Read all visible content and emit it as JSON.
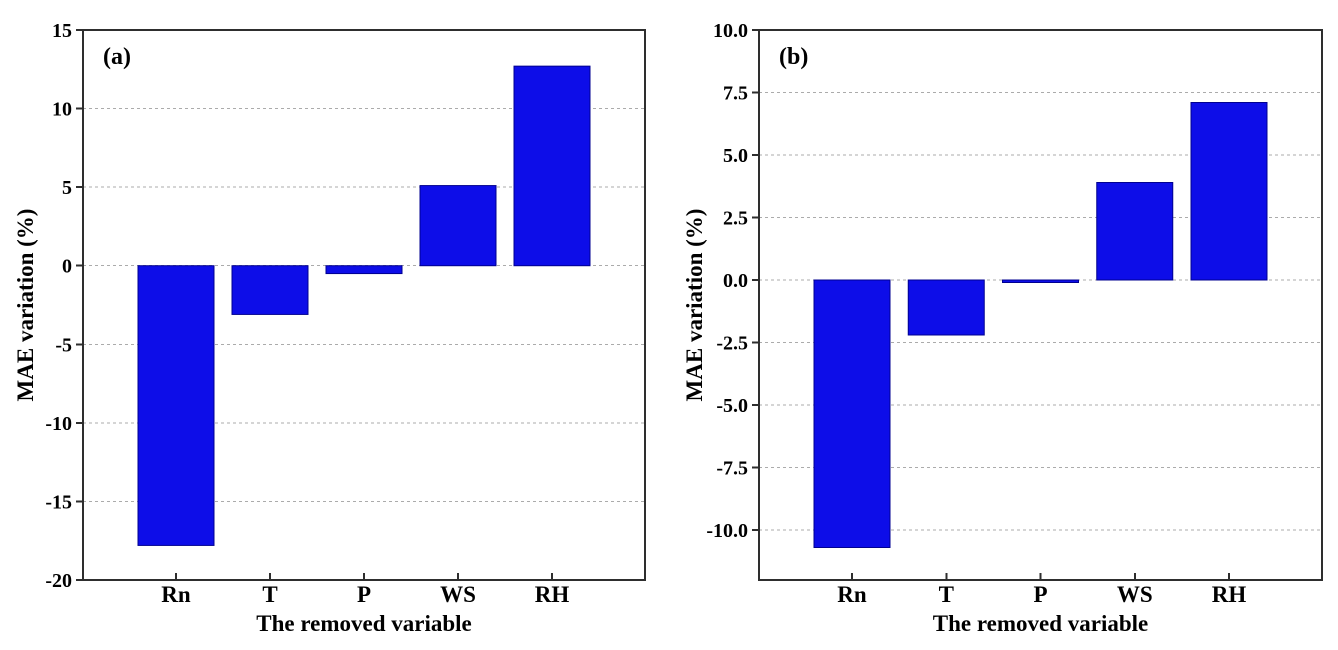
{
  "figure": {
    "description": "Two-panel bar figure showing MAE variation (%) when each input variable is removed",
    "background_color": "#ffffff",
    "panel_labels": [
      "(a)",
      "(b)"
    ]
  },
  "chart_data": [
    {
      "type": "bar",
      "panel_label": "(a)",
      "title": "",
      "xlabel": "The removed variable",
      "ylabel": "MAE variation (%)",
      "categories": [
        "Rn",
        "T",
        "P",
        "WS",
        "RH"
      ],
      "values": [
        -17.8,
        -3.1,
        -0.5,
        5.1,
        12.7
      ],
      "ylim": [
        -20,
        15
      ],
      "yticks": [
        15,
        10,
        5,
        0,
        -5,
        -10,
        -15,
        -20
      ],
      "ytick_decimals": 0,
      "grid": "horizontal-dashed",
      "legend": "none",
      "bar_color": "#0d0de8",
      "bar_edge_color": "#000090"
    },
    {
      "type": "bar",
      "panel_label": "(b)",
      "title": "",
      "xlabel": "The removed variable",
      "ylabel": "MAE variation (%)",
      "categories": [
        "Rn",
        "T",
        "P",
        "WS",
        "RH"
      ],
      "values": [
        -10.7,
        -2.2,
        -0.1,
        3.9,
        7.1
      ],
      "ylim": [
        -12,
        10
      ],
      "yticks": [
        10,
        7.5,
        5,
        2.5,
        0,
        -2.5,
        -5,
        -7.5,
        -10
      ],
      "ytick_decimals": 1,
      "grid": "horizontal-dashed",
      "legend": "none",
      "bar_color": "#0d0de8",
      "bar_edge_color": "#000090"
    }
  ],
  "colors": {
    "bar": "#0d0de8",
    "bar_edge": "#000090",
    "gridline": "#ababab",
    "frame": "#2e2e2e",
    "text": "#000000"
  }
}
